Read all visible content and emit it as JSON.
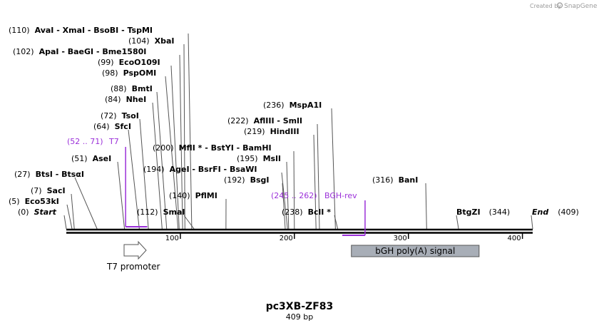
{
  "credit": {
    "created_by": "Created by",
    "brand": "SnapGene"
  },
  "map": {
    "name": "pc3XB-ZF83",
    "length_label": "409 bp",
    "length_bp": 409,
    "ticks": [
      100,
      200,
      300,
      400
    ],
    "sites": [
      {
        "id": "ava-xma-bso-tsp",
        "pos_label": "(110)",
        "name": "AvaI  - XmaI  - BsoBI  - TspMI",
        "bp": 110
      },
      {
        "id": "xbai",
        "pos_label": "(104)",
        "name": "XbaI",
        "bp": 104
      },
      {
        "id": "apa-baegi-bme",
        "pos_label": "(102)",
        "name": "ApaI  - BaeGI  - Bme1580I",
        "bp": 102
      },
      {
        "id": "eco0109i",
        "pos_label": "(99)",
        "name": "EcoO109I",
        "bp": 99
      },
      {
        "id": "pspomi",
        "pos_label": "(98)",
        "name": "PspOMI",
        "bp": 98
      },
      {
        "id": "bmti",
        "pos_label": "(88)",
        "name": "BmtI",
        "bp": 88
      },
      {
        "id": "nhei",
        "pos_label": "(84)",
        "name": "NheI",
        "bp": 84
      },
      {
        "id": "tsoi",
        "pos_label": "(72)",
        "name": "TsoI",
        "bp": 72
      },
      {
        "id": "sfci",
        "pos_label": "(64)",
        "name": "SfcI",
        "bp": 64
      },
      {
        "id": "asei",
        "pos_label": "(51)",
        "name": "AseI",
        "bp": 51
      },
      {
        "id": "btsi-btsgi",
        "pos_label": "(27)",
        "name": "BtsI  - BtsαI",
        "bp": 27
      },
      {
        "id": "saci",
        "pos_label": "(7)",
        "name": "SacI",
        "bp": 7
      },
      {
        "id": "eco53ki",
        "pos_label": "(5)",
        "name": "Eco53kI",
        "bp": 5
      },
      {
        "id": "smai",
        "pos_label": "(112)",
        "name": "SmaI",
        "bp": 112
      },
      {
        "id": "pflmi",
        "pos_label": "(140)",
        "name": "PflMI",
        "bp": 140
      },
      {
        "id": "mfli-bstyi-bamhi",
        "pos_label": "(200)",
        "name": "MflI * - BstYI  - BamHI",
        "bp": 200
      },
      {
        "id": "agei-bsrfi-bsawi",
        "pos_label": "(194)",
        "name": "AgeI  - BsrFI  - BsaWI",
        "bp": 194
      },
      {
        "id": "msli",
        "pos_label": "(195)",
        "name": "MslI",
        "bp": 195
      },
      {
        "id": "bsgi",
        "pos_label": "(192)",
        "name": "BsgI",
        "bp": 192
      },
      {
        "id": "mspa1i",
        "pos_label": "(236)",
        "name": "MspA1I",
        "bp": 236
      },
      {
        "id": "aflIII-smli",
        "pos_label": "(222)",
        "name": "AflIII  - SmlI",
        "bp": 222
      },
      {
        "id": "hindiii",
        "pos_label": "(219)",
        "name": "HindIII",
        "bp": 219
      },
      {
        "id": "bcli",
        "pos_label": "(238)",
        "name": "BclI *",
        "bp": 238
      },
      {
        "id": "bani",
        "pos_label": "(316)",
        "name": "BanI",
        "bp": 316
      },
      {
        "id": "btgzi",
        "pos_label": "(344)",
        "name": "BtgZI",
        "bp": 344
      }
    ],
    "start": {
      "pos_label": "(0)",
      "name": "Start",
      "bp": 0
    },
    "end": {
      "pos_label": "(409)",
      "name": "End",
      "bp": 409
    },
    "primers": [
      {
        "id": "t7",
        "range_label": "(52 .. 71)",
        "name": "T7",
        "start_bp": 52,
        "end_bp": 71
      },
      {
        "id": "bgh-rev",
        "range_label": "(245 .. 262)",
        "name": "BGH-rev",
        "start_bp": 245,
        "end_bp": 262
      }
    ],
    "features": [
      {
        "id": "t7-promoter",
        "name": "T7 promoter",
        "start_bp": 52,
        "end_bp": 71,
        "color": "#ffffff"
      },
      {
        "id": "bgh-polya",
        "name": "bGH poly(A) signal",
        "start_bp": 250,
        "end_bp": 362,
        "color": "#a8aeb7"
      }
    ],
    "colors": {
      "primer": "#9b30d9",
      "backbone": "#000000",
      "feature_border": "#555555"
    }
  }
}
